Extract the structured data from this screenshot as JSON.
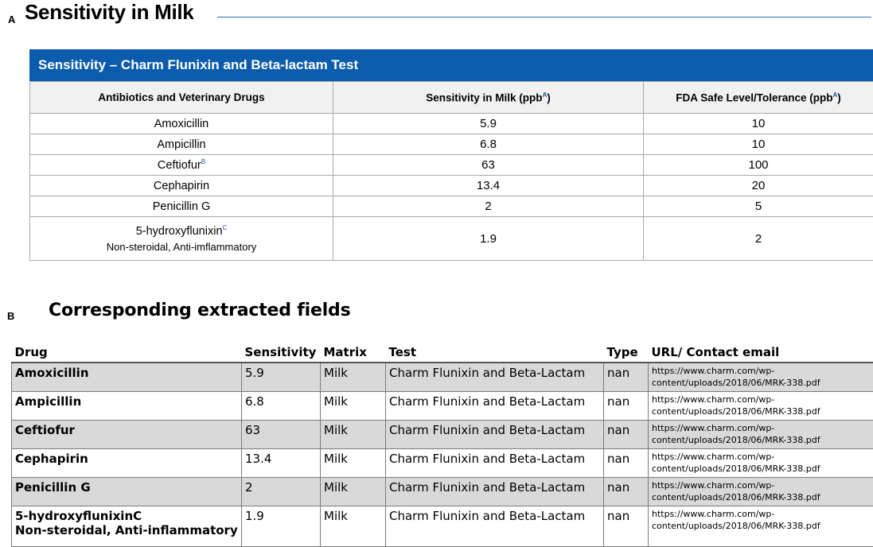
{
  "panel_a": {
    "letter": "A",
    "heading": "Sensitivity in Milk",
    "table_title": "Sensitivity – Charm Flunixin and Beta-lactam Test",
    "columns": {
      "drug": "Antibiotics and Veterinary Drugs",
      "sensitivity": "Sensitivity in Milk (ppb",
      "sensitivity_ref": "A",
      "sensitivity_close": ")",
      "fda": "FDA Safe Level/Tolerance (ppb",
      "fda_ref": "A",
      "fda_close": ")"
    },
    "rows": [
      {
        "drug": "Amoxicillin",
        "ref": "",
        "sub": "",
        "sensitivity": "5.9",
        "fda": "10"
      },
      {
        "drug": "Ampicillin",
        "ref": "",
        "sub": "",
        "sensitivity": "6.8",
        "fda": "10"
      },
      {
        "drug": "Ceftiofur",
        "ref": "B",
        "sub": "",
        "sensitivity": "63",
        "fda": "100"
      },
      {
        "drug": "Cephapirin",
        "ref": "",
        "sub": "",
        "sensitivity": "13.4",
        "fda": "20"
      },
      {
        "drug": "Penicillin G",
        "ref": "",
        "sub": "",
        "sensitivity": "2",
        "fda": "5"
      },
      {
        "drug": "5-hydroxyflunixin",
        "ref": "C",
        "sub": "Non-steroidal, Anti-imflammatory",
        "sensitivity": "1.9",
        "fda": "2"
      }
    ]
  },
  "panel_b": {
    "letter": "B",
    "heading": "Corresponding extracted fields",
    "columns": [
      "Drug",
      "Sensitivity",
      "Matrix",
      "Test",
      "Type",
      "URL/ Contact email"
    ],
    "rows": [
      {
        "drug": "Amoxicillin",
        "drug_sub": "",
        "sensitivity": "5.9",
        "matrix": "Milk",
        "test": "Charm Flunixin and Beta-Lactam",
        "type": "nan",
        "url_1": "https://www.charm.com/wp-",
        "url_2": "content/uploads/2018/06/MRK-338.pdf"
      },
      {
        "drug": "Ampicillin",
        "drug_sub": "",
        "sensitivity": "6.8",
        "matrix": "Milk",
        "test": "Charm Flunixin and Beta-Lactam",
        "type": "nan",
        "url_1": "https://www.charm.com/wp-",
        "url_2": "content/uploads/2018/06/MRK-338.pdf"
      },
      {
        "drug": "Ceftiofur",
        "drug_sub": "",
        "sensitivity": "63",
        "matrix": "Milk",
        "test": "Charm Flunixin and Beta-Lactam",
        "type": "nan",
        "url_1": "https://www.charm.com/wp-",
        "url_2": "content/uploads/2018/06/MRK-338.pdf"
      },
      {
        "drug": "Cephapirin",
        "drug_sub": "",
        "sensitivity": "13.4",
        "matrix": "Milk",
        "test": "Charm Flunixin and Beta-Lactam",
        "type": "nan",
        "url_1": "https://www.charm.com/wp-",
        "url_2": "content/uploads/2018/06/MRK-338.pdf"
      },
      {
        "drug": "Penicillin G",
        "drug_sub": "",
        "sensitivity": "2",
        "matrix": "Milk",
        "test": "Charm Flunixin and Beta-Lactam",
        "type": "nan",
        "url_1": "https://www.charm.com/wp-",
        "url_2": "content/uploads/2018/06/MRK-338.pdf"
      },
      {
        "drug": "5-hydroxyflunixinC",
        "drug_sub": "Non-steroidal, Anti-inflammatory",
        "sensitivity": "1.9",
        "matrix": "Milk",
        "test": "Charm Flunixin and Beta-Lactam",
        "type": "nan",
        "url_1": "https://www.charm.com/wp-",
        "url_2": "content/uploads/2018/06/MRK-338.pdf"
      }
    ]
  },
  "colors": {
    "banner": "#0b5cad",
    "header_bg": "#f1f1f2",
    "shaded_row": "#d9d9d9",
    "rule": "#2f6db5"
  }
}
